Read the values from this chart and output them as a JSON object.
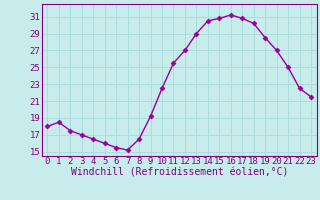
{
  "x": [
    0,
    1,
    2,
    3,
    4,
    5,
    6,
    7,
    8,
    9,
    10,
    11,
    12,
    13,
    14,
    15,
    16,
    17,
    18,
    19,
    20,
    21,
    22,
    23
  ],
  "y": [
    18.0,
    18.5,
    17.5,
    17.0,
    16.5,
    16.0,
    15.5,
    15.2,
    16.5,
    19.2,
    22.5,
    25.5,
    27.0,
    29.0,
    30.5,
    30.8,
    31.2,
    30.8,
    30.2,
    28.5,
    27.0,
    25.0,
    22.5,
    21.5
  ],
  "line_color": "#990099",
  "marker": "D",
  "markersize": 2.5,
  "linewidth": 1.0,
  "xlabel": "Windchill (Refroidissement éolien,°C)",
  "xlim": [
    -0.5,
    23.5
  ],
  "ylim": [
    14.5,
    32.5
  ],
  "yticks": [
    15,
    17,
    19,
    21,
    23,
    25,
    27,
    29,
    31
  ],
  "xticks": [
    0,
    1,
    2,
    3,
    4,
    5,
    6,
    7,
    8,
    9,
    10,
    11,
    12,
    13,
    14,
    15,
    16,
    17,
    18,
    19,
    20,
    21,
    22,
    23
  ],
  "bg_color": "#c8ecec",
  "grid_color": "#aadddd",
  "line_purple": "#800080",
  "xlabel_fontsize": 7.0,
  "tick_fontsize": 6.5
}
